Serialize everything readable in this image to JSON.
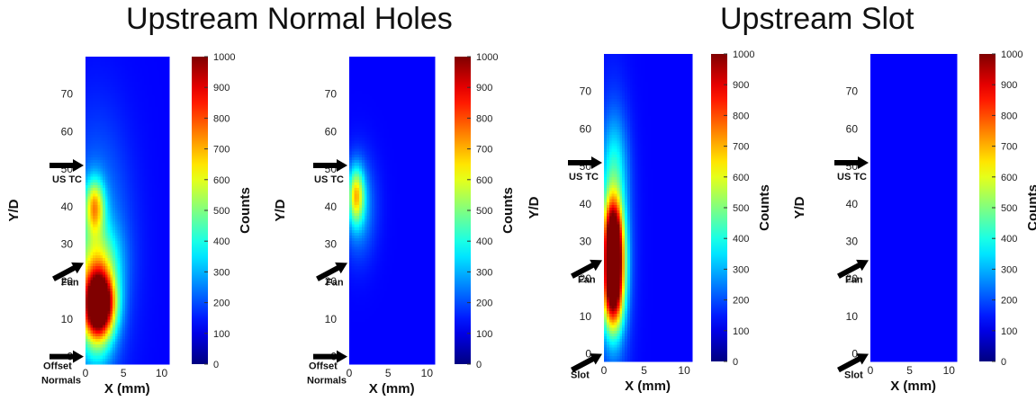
{
  "group_titles": [
    "Upstream Normal Holes",
    "Upstream Slot"
  ],
  "chart_data": [
    {
      "type": "heatmap",
      "group": "Upstream Normal Holes",
      "xlabel": "X (mm)",
      "ylabel": "Y/D",
      "xlim": [
        0,
        11
      ],
      "ylim": [
        -2,
        80
      ],
      "xticks": [
        0,
        5,
        10
      ],
      "yticks": [
        0,
        10,
        20,
        30,
        40,
        50,
        60,
        70
      ],
      "colorbar": {
        "label": "Counts",
        "range": [
          0,
          1000
        ],
        "ticks": [
          0,
          100,
          200,
          300,
          400,
          500,
          600,
          700,
          800,
          900,
          1000
        ]
      },
      "annotations": [
        {
          "text": "US TC",
          "y": 51
        },
        {
          "text": "Fan",
          "y": 25
        },
        {
          "text": "Offset Normals",
          "y": 0
        }
      ],
      "hotspots": [
        {
          "x": 1.8,
          "y": 14,
          "sx": 1.4,
          "sy": 5.5,
          "peak": 1000
        },
        {
          "x": 1.4,
          "y": 10,
          "sx": 1.6,
          "sy": 9,
          "peak": 380
        },
        {
          "x": 1.2,
          "y": 40,
          "sx": 0.9,
          "sy": 5,
          "peak": 520
        },
        {
          "x": 1.6,
          "y": 25,
          "sx": 2.0,
          "sy": 7,
          "peak": 320
        },
        {
          "x": 1.5,
          "y": 30,
          "sx": 3.0,
          "sy": 22,
          "peak": 180
        }
      ]
    },
    {
      "type": "heatmap",
      "group": "Upstream Normal Holes",
      "xlabel": "X (mm)",
      "ylabel": "Y/D",
      "xlim": [
        0,
        11
      ],
      "ylim": [
        -2,
        80
      ],
      "xticks": [
        0,
        5,
        10
      ],
      "yticks": [
        0,
        10,
        20,
        30,
        40,
        50,
        60,
        70
      ],
      "colorbar": {
        "label": "Counts",
        "range": [
          0,
          1000
        ],
        "ticks": [
          0,
          100,
          200,
          300,
          400,
          500,
          600,
          700,
          800,
          900,
          1000
        ]
      },
      "annotations": [
        {
          "text": "US TC",
          "y": 51
        },
        {
          "text": "Fan",
          "y": 25
        },
        {
          "text": "Offset Normals",
          "y": 0
        }
      ],
      "hotspots": [
        {
          "x": 0.9,
          "y": 43,
          "sx": 0.7,
          "sy": 5,
          "peak": 480
        },
        {
          "x": 1.2,
          "y": 40,
          "sx": 1.5,
          "sy": 9,
          "peak": 200
        }
      ]
    },
    {
      "type": "heatmap",
      "group": "Upstream Slot",
      "xlabel": "X (mm)",
      "ylabel": "Y/D",
      "xlim": [
        0,
        11
      ],
      "ylim": [
        -2,
        80
      ],
      "xticks": [
        0,
        5,
        10
      ],
      "yticks": [
        0,
        10,
        20,
        30,
        40,
        50,
        60,
        70
      ],
      "colorbar": {
        "label": "Counts",
        "range": [
          0,
          1000
        ],
        "ticks": [
          0,
          100,
          200,
          300,
          400,
          500,
          600,
          700,
          800,
          900,
          1000
        ]
      },
      "annotations": [
        {
          "text": "US TC",
          "y": 51
        },
        {
          "text": "Fan",
          "y": 25
        },
        {
          "text": "Slot",
          "y": 0
        }
      ],
      "hotspots": [
        {
          "x": 1.2,
          "y": 25,
          "sx": 0.9,
          "sy": 8,
          "peak": 850
        },
        {
          "x": 1.1,
          "y": 33,
          "sx": 0.8,
          "sy": 7,
          "peak": 520
        },
        {
          "x": 1.1,
          "y": 15,
          "sx": 0.9,
          "sy": 7,
          "peak": 600
        },
        {
          "x": 1.2,
          "y": 30,
          "sx": 1.4,
          "sy": 22,
          "peak": 280
        },
        {
          "x": 1.3,
          "y": 50,
          "sx": 1.1,
          "sy": 9,
          "peak": 150
        }
      ]
    },
    {
      "type": "heatmap",
      "group": "Upstream Slot",
      "xlabel": "X (mm)",
      "ylabel": "Y/D",
      "xlim": [
        0,
        11
      ],
      "ylim": [
        -2,
        80
      ],
      "xticks": [
        0,
        5,
        10
      ],
      "yticks": [
        0,
        10,
        20,
        30,
        40,
        50,
        60,
        70
      ],
      "colorbar": {
        "label": "Counts",
        "range": [
          0,
          1000
        ],
        "ticks": [
          0,
          100,
          200,
          300,
          400,
          500,
          600,
          700,
          800,
          900,
          1000
        ]
      },
      "annotations": [
        {
          "text": "US TC",
          "y": 51
        },
        {
          "text": "Fan",
          "y": 25
        },
        {
          "text": "Slot",
          "y": 0
        }
      ],
      "hotspots": []
    }
  ]
}
